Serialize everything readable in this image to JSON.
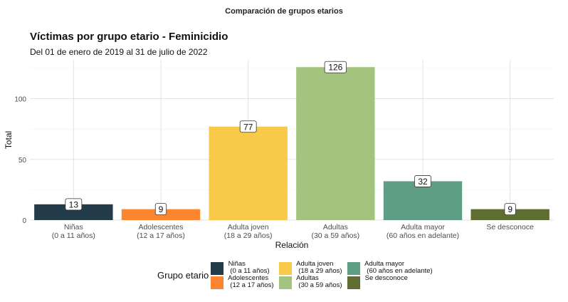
{
  "page_title": "Comparación de grupos etarios",
  "chart_data": {
    "type": "bar",
    "title": "Víctimas por grupo etario - Feminicidio",
    "subtitle": "Del 01 de enero de 2019 al 31 de julio de 2022",
    "xlabel": "Relación",
    "ylabel": "Total",
    "categories": [
      "Niñas\n(0 a 11 años)",
      "Adolescentes\n(12 a 17 años)",
      "Adulta joven\n(18 a 29 años)",
      "Adultas\n(30 a 59 años)",
      "Adulta mayor\n(60 años en adelante)",
      "Se desconoce"
    ],
    "values": [
      13,
      9,
      77,
      126,
      32,
      9
    ],
    "colors": [
      "#243b4a",
      "#fc8530",
      "#f9c949",
      "#a3c47e",
      "#5e9e85",
      "#5e6d32"
    ],
    "ylim": [
      0,
      132
    ],
    "yticks": [
      0,
      50,
      100
    ],
    "grid": true,
    "legend": {
      "title": "Grupo etario",
      "position": "bottom",
      "items": [
        " Niñas\n  (0 a 11 años)",
        " Adolescentes\n  (12 a 17 años)",
        " Adulta joven\n  (18 a 29 años)",
        " Adultas\n  (30 a 59 años)",
        " Adulta mayor\n  (60 años en adelante)",
        " Se desconoce"
      ]
    }
  }
}
